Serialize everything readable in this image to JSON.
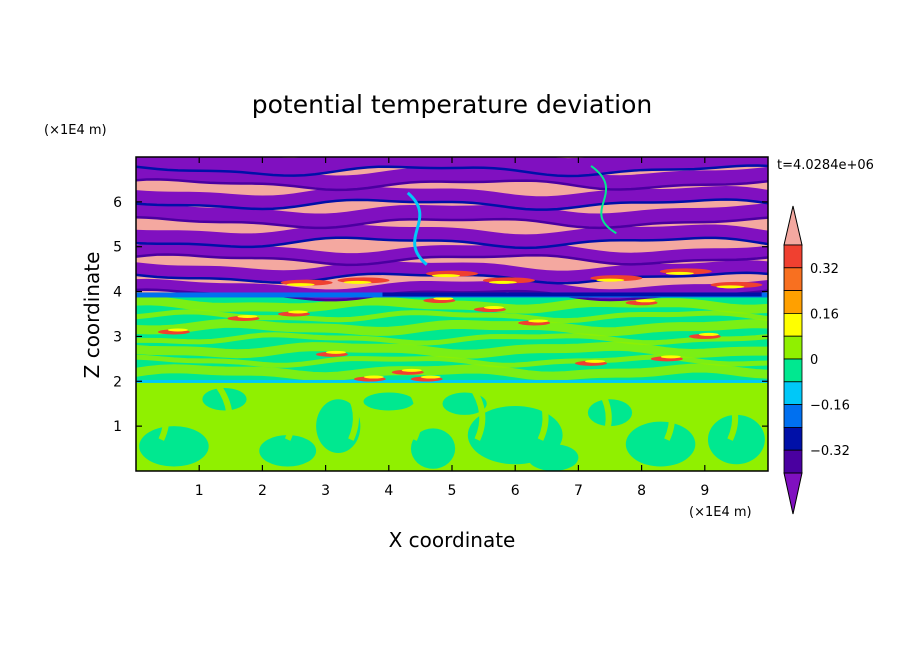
{
  "chart_data": {
    "type": "heatmap",
    "title": "potential temperature deviation",
    "xlabel": "X coordinate",
    "ylabel": "Z coordinate",
    "x_unit": "(×1E4 m)",
    "y_unit": "(×1E4 m)",
    "time_label": "t=4.0284e+06",
    "xlim": [
      0,
      10
    ],
    "ylim": [
      0,
      7
    ],
    "x_ticks": [
      "1",
      "2",
      "3",
      "4",
      "5",
      "6",
      "7",
      "8",
      "9"
    ],
    "y_ticks": [
      "1",
      "2",
      "3",
      "4",
      "5",
      "6"
    ],
    "colorbar": {
      "labels": [
        "0.32",
        "0.16",
        "0",
        "−0.16",
        "−0.32"
      ],
      "label_values": [
        0.32,
        0.16,
        0,
        -0.16,
        -0.32
      ],
      "levels": [
        {
          "color": "#f4a8a0",
          "range": "> 0.40"
        },
        {
          "color": "#f04030",
          "range": "0.32 to 0.40"
        },
        {
          "color": "#f87020",
          "range": "0.24 to 0.32"
        },
        {
          "color": "#ffa000",
          "range": "0.16 to 0.24"
        },
        {
          "color": "#ffff00",
          "range": "0.08 to 0.16"
        },
        {
          "color": "#90f000",
          "range": "0 to 0.08"
        },
        {
          "color": "#00e890",
          "range": "-0.08 to 0"
        },
        {
          "color": "#00c8f8",
          "range": "-0.16 to -0.08"
        },
        {
          "color": "#0070f0",
          "range": "-0.24 to -0.16"
        },
        {
          "color": "#0010a8",
          "range": "-0.32 to -0.24"
        },
        {
          "color": "#4a00a0",
          "range": "-0.40 to -0.32"
        },
        {
          "color": "#8010c0",
          "range": "< -0.40"
        }
      ]
    },
    "layers": [
      {
        "z_range": [
          0,
          2.0
        ],
        "pattern": "green-cyan convective cells",
        "colors": [
          "#90f000",
          "#00e890"
        ]
      },
      {
        "z_range": [
          2.0,
          3.9
        ],
        "pattern": "cyan with thin warm filaments",
        "colors": [
          "#00e890",
          "#90f000",
          "#f04030"
        ]
      },
      {
        "z_range": [
          3.9,
          7.0
        ],
        "pattern": "alternating pink and purple bands",
        "colors": [
          "#f4a8a0",
          "#8010c0"
        ]
      }
    ]
  }
}
